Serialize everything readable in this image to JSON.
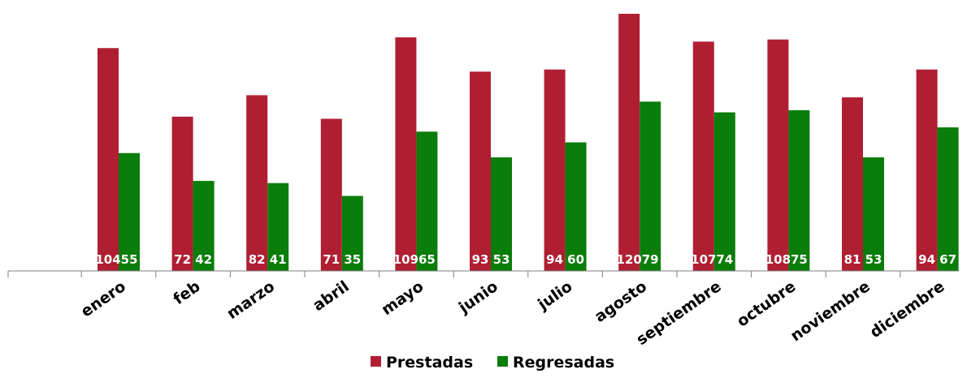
{
  "chart_data": {
    "type": "bar",
    "categories": [
      "enero",
      "feb",
      "marzo",
      "abril",
      "mayo",
      "junio",
      "julio",
      "agosto",
      "septiembre",
      "octubre",
      "noviembre",
      "diciembre"
    ],
    "series": [
      {
        "name": "Prestadas",
        "color": "#b01e32",
        "values": [
          104,
          72,
          82,
          71,
          109,
          93,
          94,
          120,
          107,
          108,
          81,
          94
        ]
      },
      {
        "name": "Regresadas",
        "color": "#0a7d0a",
        "values": [
          55,
          42,
          41,
          35,
          65,
          53,
          60,
          79,
          74,
          75,
          53,
          67
        ]
      }
    ],
    "legend_position": "bottom",
    "grid": false,
    "ylim": [
      0,
      120
    ],
    "axis_color": "#7f7f7f"
  }
}
